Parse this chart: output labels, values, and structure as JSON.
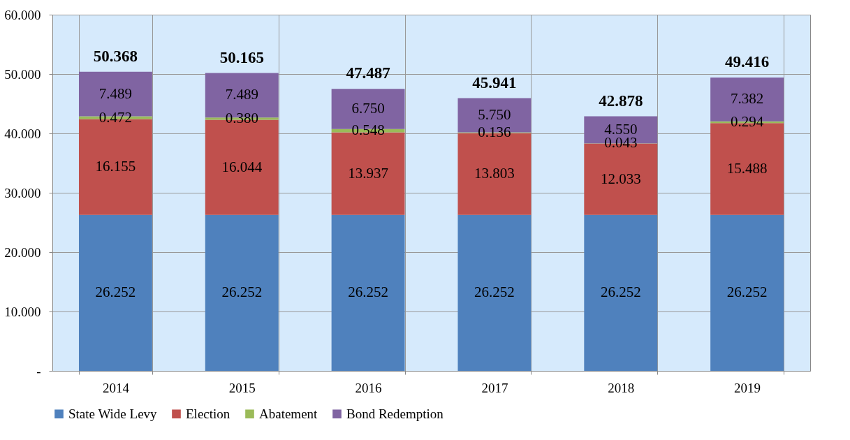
{
  "chart_data": {
    "type": "bar",
    "stacked": true,
    "categories": [
      "2014",
      "2015",
      "2016",
      "2017",
      "2018",
      "2019"
    ],
    "series": [
      {
        "name": "State Wide Levy",
        "color": "#4f81bd",
        "values": [
          26.252,
          26.252,
          26.252,
          26.252,
          26.252,
          26.252
        ],
        "value_labels": [
          "26.252",
          "26.252",
          "26.252",
          "26.252",
          "26.252",
          "26.252"
        ]
      },
      {
        "name": "Election",
        "color": "#c0504d",
        "values": [
          16.155,
          16.044,
          13.937,
          13.803,
          12.033,
          15.488
        ],
        "value_labels": [
          "16.155",
          "16.044",
          "13.937",
          "13.803",
          "12.033",
          "15.488"
        ]
      },
      {
        "name": "Abatement",
        "color": "#9bbb59",
        "values": [
          0.472,
          0.38,
          0.548,
          0.136,
          0.043,
          0.294
        ],
        "value_labels": [
          "0.472",
          "0.380",
          "0.548",
          "0.136",
          "0.043",
          "0.294"
        ]
      },
      {
        "name": "Bond Redemption",
        "color": "#8064a2",
        "values": [
          7.489,
          7.489,
          6.75,
          5.75,
          4.55,
          7.382
        ],
        "value_labels": [
          "7.489",
          "7.489",
          "6.750",
          "5.750",
          "4.550",
          "7.382"
        ]
      }
    ],
    "totals": [
      "50.368",
      "50.165",
      "47.487",
      "45.941",
      "42.878",
      "49.416"
    ],
    "ylim": [
      0,
      60
    ],
    "yticks": [
      {
        "value": 0,
        "label": "-"
      },
      {
        "value": 10,
        "label": "10.000"
      },
      {
        "value": 20,
        "label": "20.000"
      },
      {
        "value": 30,
        "label": "30.000"
      },
      {
        "value": 40,
        "label": "40.000"
      },
      {
        "value": 50,
        "label": "50.000"
      },
      {
        "value": 60,
        "label": "60.000"
      }
    ],
    "grid": true,
    "legend": "bottom"
  }
}
